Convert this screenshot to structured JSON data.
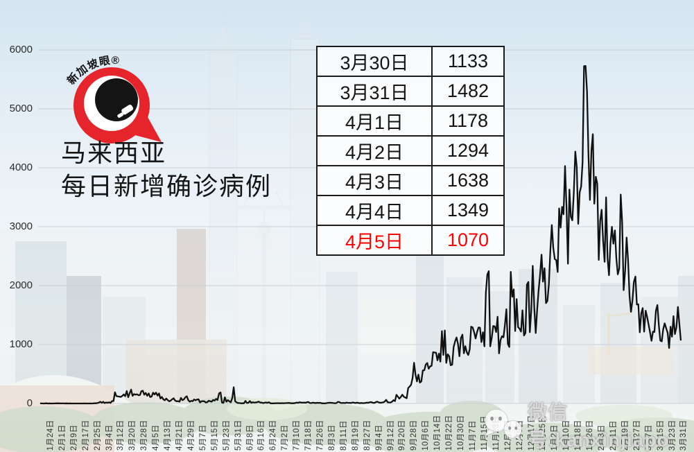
{
  "logo": {
    "text": "新加坡眼®",
    "icon": "eye-speech-bubble-icon",
    "color": "#e5252b"
  },
  "title": {
    "line1": "马来西亚",
    "line2": "每日新增确诊病例"
  },
  "table": {
    "rows": [
      {
        "date": "3月30日",
        "value": "1133"
      },
      {
        "date": "3月31日",
        "value": "1482"
      },
      {
        "date": "4月1日",
        "value": "1178"
      },
      {
        "date": "4月2日",
        "value": "1294"
      },
      {
        "date": "4月3日",
        "value": "1638"
      },
      {
        "date": "4月4日",
        "value": "1349"
      },
      {
        "date": "4月5日",
        "value": "1070",
        "highlight": true
      }
    ],
    "highlight_color": "#fe0000"
  },
  "watermark": {
    "label": "微信号:kanxinjiapo",
    "icon": "wechat-icon"
  },
  "colors": {
    "logo_red": "#e5252b",
    "highlight_red": "#fe0000",
    "line_black": "#111111",
    "grid_gray": "#c9cfd4"
  },
  "chart_data": {
    "type": "line",
    "title": "马来西亚每日新增确诊病例",
    "xlabel": "",
    "ylabel": "",
    "ylim": [
      0,
      6000
    ],
    "y_ticks": [
      0,
      1000,
      2000,
      3000,
      4000,
      5000,
      6000
    ],
    "grid": "horizontal",
    "legend": "none",
    "line_color": "#111111",
    "x_tick_interval_days": 8,
    "x_tick_labels": [
      "1月24日",
      "2月1日",
      "2月9日",
      "2月17日",
      "2月25日",
      "3月4日",
      "3月12日",
      "3月20日",
      "3月28日",
      "4月5日",
      "4月13日",
      "4月21日",
      "4月29日",
      "5月7日",
      "5月15日",
      "5月23日",
      "5月31日",
      "6月8日",
      "6月16日",
      "6月24日",
      "7月2日",
      "7月10日",
      "7月18日",
      "7月26日",
      "8月3日",
      "8月11日",
      "8月19日",
      "8月27日",
      "9月4日",
      "9月12日",
      "9月20日",
      "9月28日",
      "10月6日",
      "10月14日",
      "10月22日",
      "10月30日",
      "11月7日",
      "11月15日",
      "11月23日",
      "12月1日",
      "12月9日",
      "12月17日",
      "12月25日",
      "1月2日",
      "1月10日",
      "1月18日",
      "1月26日",
      "2月3日",
      "2月11日",
      "2月19日",
      "2月27日",
      "3月7日",
      "3月15日",
      "3月23日",
      "3月31日"
    ],
    "values": [
      3,
      1,
      0,
      0,
      3,
      0,
      1,
      0,
      0,
      0,
      1,
      2,
      2,
      2,
      1,
      1,
      1,
      0,
      2,
      0,
      1,
      0,
      0,
      0,
      0,
      0,
      0,
      0,
      0,
      0,
      1,
      0,
      0,
      0,
      0,
      0,
      1,
      4,
      4,
      7,
      14,
      28,
      10,
      28,
      6,
      18,
      12,
      20,
      9,
      41,
      41,
      190,
      125,
      120,
      117,
      110,
      130,
      153,
      123,
      212,
      106,
      172,
      235,
      130,
      159,
      150,
      156,
      140,
      142,
      208,
      217,
      150,
      179,
      131,
      170,
      109,
      118,
      184,
      153,
      184,
      134,
      170,
      85,
      110,
      69,
      54,
      84,
      57,
      36,
      50,
      71,
      88,
      51,
      38,
      40,
      31,
      94,
      57,
      69,
      105,
      122,
      55,
      30,
      45,
      39,
      68,
      54,
      67,
      70,
      16,
      37,
      40,
      36,
      17,
      22,
      47,
      37,
      31,
      60,
      50,
      78,
      60,
      172,
      187,
      15,
      10,
      103,
      30,
      57,
      38,
      20,
      93,
      277,
      37,
      19,
      7,
      7,
      2,
      4,
      3,
      43,
      9,
      11,
      41,
      11,
      21,
      14,
      18,
      21,
      32,
      15,
      16,
      6,
      13,
      18,
      10,
      21,
      3,
      2,
      1,
      3,
      5,
      6,
      5,
      4,
      6,
      3,
      6,
      7,
      8,
      9,
      3,
      4,
      3,
      9,
      15,
      10,
      21,
      15,
      13,
      16,
      12,
      21,
      25,
      7,
      7,
      14,
      9,
      8,
      12,
      9,
      12,
      3,
      2,
      1,
      4,
      10,
      12,
      13,
      11,
      7,
      5,
      6,
      26,
      25,
      9,
      7,
      10,
      6,
      15,
      11,
      10,
      8,
      17,
      13,
      7,
      14,
      10,
      5,
      9,
      6,
      6,
      10,
      14,
      12,
      23,
      21,
      10,
      11,
      24,
      31,
      18,
      12,
      16,
      19,
      33,
      62,
      21,
      18,
      17,
      31,
      56,
      40,
      147,
      115,
      82,
      111,
      150,
      115,
      101,
      89,
      260,
      287,
      317,
      432,
      691,
      489,
      375,
      489,
      354,
      374,
      561,
      563,
      660,
      687,
      589,
      629,
      639,
      871,
      865,
      862,
      732,
      847,
      710,
      1228,
      823,
      1240,
      690,
      835,
      801,
      649,
      659,
      957,
      1054,
      1120,
      1010,
      801,
      1109,
      1168,
      852,
      972,
      869,
      822,
      919,
      1304,
      1290,
      1208,
      1103,
      1210,
      1290,
      1286,
      1041,
      1208,
      970,
      1884,
      2188,
      2245,
      970,
      1109,
      1315,
      1309,
      1212,
      1472,
      851,
      1075,
      1141,
      1123,
      1335,
      1600,
      1012,
      959,
      2234,
      1810,
      1937,
      1229,
      1772,
      1295,
      1270,
      1220,
      1581,
      1153,
      1196,
      2018,
      2062,
      1209,
      1581,
      2335,
      1630,
      1196,
      1594,
      1925,
      2188,
      2525,
      2068,
      2295,
      1704,
      1741,
      2027,
      2593,
      3027,
      2643,
      2451,
      2433,
      2232,
      3309,
      2985,
      3337,
      3211,
      4029,
      3339,
      2373,
      3631,
      3170,
      3108,
      3566,
      4275,
      4008,
      3048,
      3585,
      3680,
      4094,
      5725,
      5728,
      5298,
      4214,
      3455,
      4284,
      4571,
      3391,
      3847,
      3731,
      2437,
      3100,
      3288,
      2764,
      2403,
      3499,
      2464,
      2176,
      2712,
      2998,
      2712,
      2936,
      2461,
      2192,
      2291,
      3545,
      3075,
      1924,
      2253,
      2817,
      2437,
      1828,
      1555,
      1745,
      2063,
      2154,
      1680,
      1683,
      1208,
      1529,
      1619,
      1219,
      1575,
      1470,
      1340,
      1208,
      1063,
      1219,
      1213,
      1576,
      1671,
      1327,
      1068,
      1054,
      1261,
      1360,
      1275,
      1199,
      941,
      1302,
      1133,
      1482,
      1178,
      1294,
      1638,
      1349,
      1070
    ]
  }
}
